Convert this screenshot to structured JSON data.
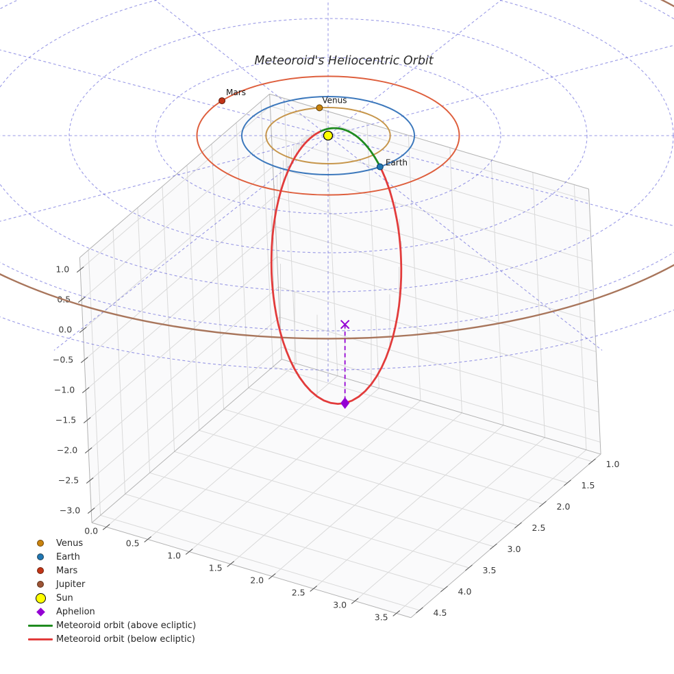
{
  "chart_data": {
    "type": "line",
    "projection": "3d",
    "title": "Meteoroid's Heliocentric Orbit",
    "axis": {
      "grid": true,
      "x_tick_labels": [
        "0.0",
        "0.5",
        "1.0",
        "1.5",
        "2.0",
        "2.5",
        "3.0",
        "3.5"
      ],
      "x_tick_values": [
        0,
        0.5,
        1,
        1.5,
        2,
        2.5,
        3,
        3.5
      ],
      "y_tick_labels": [
        "1.0",
        "1.5",
        "2.0",
        "2.5",
        "3.0",
        "3.5",
        "4.0",
        "4.5"
      ],
      "y_tick_values": [
        1,
        1.5,
        2,
        2.5,
        3,
        3.5,
        4,
        4.5
      ],
      "z_tick_labels": [
        "1.0",
        "0.5",
        "0.0",
        "−0.5",
        "−1.0",
        "−1.5",
        "−2.0",
        "−2.5",
        "−3.0"
      ],
      "z_tick_values": [
        1,
        0.5,
        0,
        -0.5,
        -1,
        -1.5,
        -2,
        -2.5,
        -3
      ],
      "xlim": [
        -0.175,
        3.675
      ],
      "ylim": [
        0.825,
        4.675
      ],
      "zlim": [
        -3.2,
        1.2
      ]
    },
    "sun": {
      "name": "Sun",
      "position_au": [
        0,
        0,
        0
      ],
      "color": "#FFFF00",
      "edge_color": "#000000"
    },
    "planets": [
      {
        "name": "Venus",
        "label": "Venus",
        "orbit_radius_au": 0.72,
        "angle_deg": 262,
        "orbit_color": "#C6954A",
        "dot_color": "#C9830E",
        "edge_color": "#5C3D08",
        "label_offset": [
          4,
          -7
        ],
        "show_dot": true
      },
      {
        "name": "Earth",
        "label": "Earth",
        "orbit_radius_au": 1.0,
        "angle_deg": 53,
        "orbit_color": "#3C78BC",
        "dot_color": "#1F77B4",
        "edge_color": "#0D3D61",
        "label_offset": [
          8,
          -2
        ],
        "show_dot": true
      },
      {
        "name": "Mars",
        "label": "Mars",
        "orbit_radius_au": 1.52,
        "angle_deg": 216,
        "orbit_color": "#DE5E3C",
        "dot_color": "#C23417",
        "edge_color": "#5E1A0B",
        "label_offset": [
          6,
          -8
        ],
        "show_dot": true
      },
      {
        "name": "Jupiter",
        "label": "",
        "orbit_radius_au": 5.2,
        "angle_deg": null,
        "orbit_color": "#A8755B",
        "dot_color": "#9C5335",
        "edge_color": "#4A2312",
        "label_offset": [
          0,
          0
        ],
        "show_dot": false
      }
    ],
    "meteoroid_orbit": {
      "perihelion_au": 0.126,
      "aphelion_au": 5.02,
      "eccentricity": 0.951,
      "inclination_deg": 25.6,
      "arg_perihelion_deg": 37.5,
      "node_angle_deg": 233,
      "above_color": "#1F8B1F",
      "below_color": "#E23B3B",
      "stem_color": "#C9C9C9"
    },
    "aphelion_marker": {
      "label": "Aphelion",
      "color": "#9400D3"
    },
    "ecliptic_polar_grid": {
      "circle_radii_au": [
        1,
        2,
        3,
        4,
        5,
        6
      ],
      "radial_step_deg": 30,
      "color": "#5656D6"
    },
    "legend": [
      {
        "label": "Venus",
        "marker": "dot",
        "color": "#C9830E"
      },
      {
        "label": "Earth",
        "marker": "dot",
        "color": "#1F77B4"
      },
      {
        "label": "Mars",
        "marker": "dot",
        "color": "#C23417"
      },
      {
        "label": "Jupiter",
        "marker": "dot",
        "color": "#9C5335"
      },
      {
        "label": "Sun",
        "marker": "sun",
        "color": "#FFFF00"
      },
      {
        "label": "Aphelion",
        "marker": "diamond",
        "color": "#9400D3"
      },
      {
        "label": "Meteoroid orbit (above ecliptic)",
        "marker": "line",
        "color": "#1F8B1F"
      },
      {
        "label": "Meteoroid orbit (below ecliptic)",
        "marker": "line",
        "color": "#E23B3B"
      }
    ]
  }
}
